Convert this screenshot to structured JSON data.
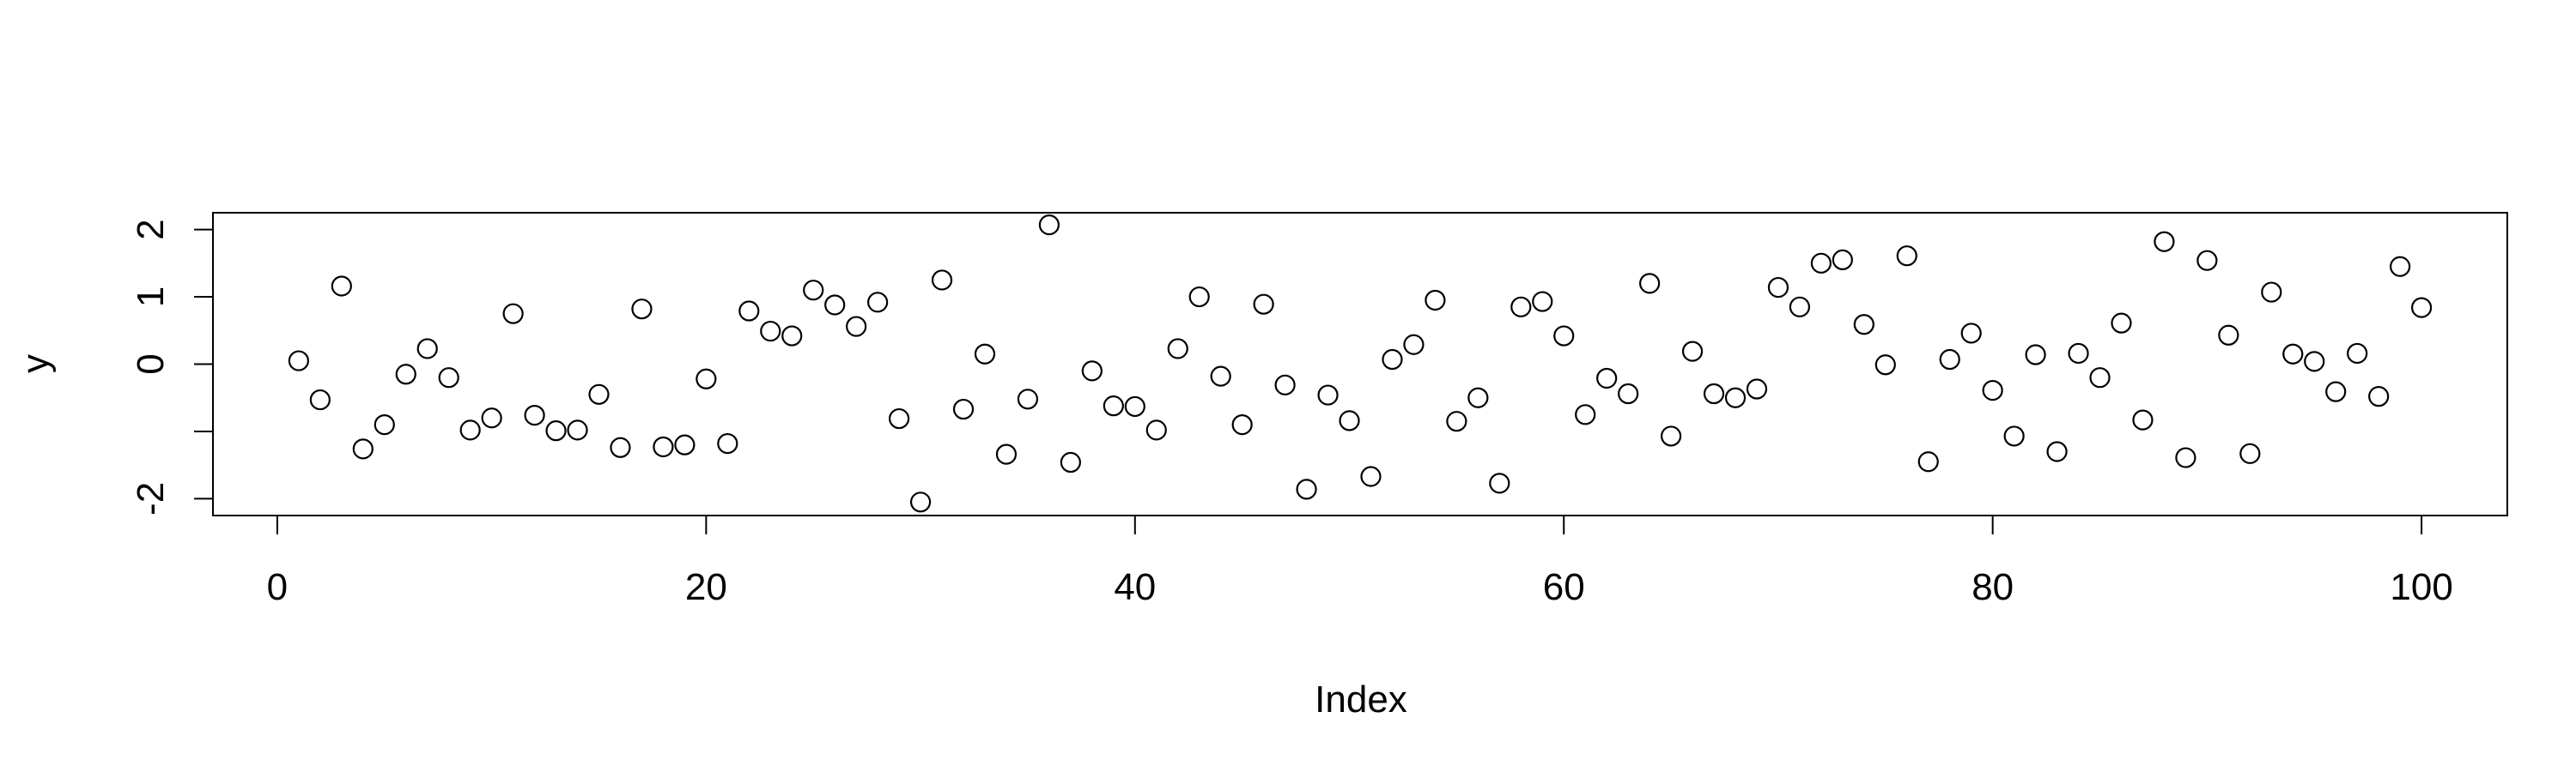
{
  "chart_data": {
    "type": "scatter",
    "title": "",
    "xlabel": "Index",
    "ylabel": "y",
    "xlim": [
      -3,
      104
    ],
    "ylim": [
      -2.25,
      2.25
    ],
    "x_ticks": [
      0,
      20,
      40,
      60,
      80,
      100
    ],
    "y_ticks": [
      -2,
      -1,
      0,
      1,
      2
    ],
    "y_tick_labels": [
      "-2",
      "",
      "0",
      "1",
      "2"
    ],
    "grid": false,
    "marker": "open-circle",
    "series": [
      {
        "x": [
          1,
          2,
          3,
          4,
          5,
          6,
          7,
          8,
          9,
          10,
          11,
          12,
          13,
          14,
          15,
          16,
          17,
          18,
          19,
          20,
          21,
          22,
          23,
          24,
          25,
          26,
          27,
          28,
          29,
          30,
          31,
          32,
          33,
          34,
          35,
          36,
          37,
          38,
          39,
          40,
          41,
          42,
          43,
          44,
          45,
          46,
          47,
          48,
          49,
          50,
          51,
          52,
          53,
          54,
          55,
          56,
          57,
          58,
          59,
          60,
          61,
          62,
          63,
          64,
          65,
          66,
          67,
          68,
          69,
          70,
          71,
          72,
          73,
          74,
          75,
          76,
          77,
          78,
          79,
          80,
          81,
          82,
          83,
          84,
          85,
          86,
          87,
          88,
          89,
          90,
          91,
          92,
          93,
          94,
          95,
          96,
          97,
          98,
          99,
          100
        ],
        "y": [
          0.05,
          -0.53,
          1.16,
          -1.26,
          -0.9,
          -0.15,
          0.23,
          -0.2,
          -0.98,
          -0.8,
          0.75,
          -0.76,
          -0.99,
          -0.98,
          -0.45,
          -1.24,
          0.82,
          -1.23,
          -1.2,
          -0.22,
          -1.18,
          0.79,
          0.49,
          0.42,
          1.1,
          0.88,
          0.56,
          0.92,
          -0.81,
          -2.05,
          1.25,
          -0.67,
          0.15,
          -1.34,
          -0.52,
          2.07,
          -1.46,
          -0.1,
          -0.62,
          -0.63,
          -0.98,
          0.23,
          1.0,
          -0.18,
          -0.9,
          0.89,
          -0.31,
          -1.86,
          -0.46,
          -0.84,
          -1.67,
          0.07,
          0.29,
          0.95,
          -0.85,
          -0.5,
          -1.77,
          0.85,
          0.93,
          0.42,
          -0.75,
          -0.21,
          -0.44,
          1.2,
          -1.07,
          0.19,
          -0.44,
          -0.5,
          -0.37,
          1.14,
          0.85,
          1.5,
          1.55,
          0.59,
          -0.01,
          1.61,
          -1.45,
          0.07,
          0.46,
          -0.39,
          -1.07,
          0.14,
          -1.3,
          0.16,
          -0.2,
          0.61,
          -0.83,
          1.82,
          -1.39,
          1.54,
          0.43,
          -1.33,
          1.07,
          0.15,
          0.04,
          -0.41,
          0.16,
          -0.48,
          1.45,
          0.84
        ]
      }
    ]
  }
}
